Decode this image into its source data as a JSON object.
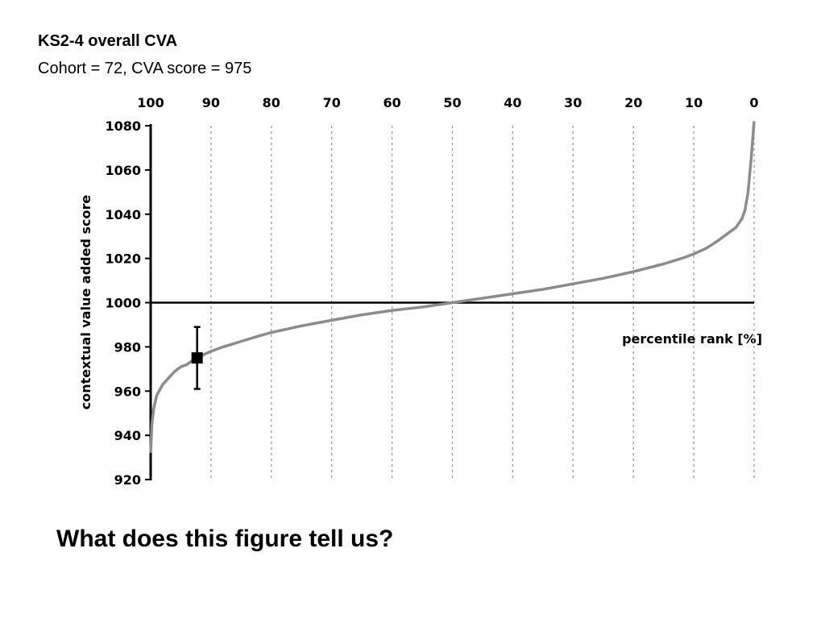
{
  "header": {
    "title": "KS2-4 overall CVA",
    "subtitle": "Cohort = 72, CVA score = 975"
  },
  "footer": {
    "question": "What does this figure tell us?"
  },
  "chart_data": {
    "type": "line",
    "title": "KS2-4 overall CVA",
    "xlabel": "percentile rank [%]",
    "ylabel": "contextual value added score",
    "xlim": [
      100,
      0
    ],
    "ylim": [
      920,
      1080
    ],
    "x_ticks": [
      100,
      90,
      80,
      70,
      60,
      50,
      40,
      30,
      20,
      10,
      0
    ],
    "y_ticks": [
      920,
      940,
      960,
      980,
      1000,
      1020,
      1040,
      1060,
      1080
    ],
    "x_axis_position": "top",
    "vertical_gridlines": "dotted",
    "reference_line": {
      "y": 1000
    },
    "series": [
      {
        "x": [
          100,
          99.8,
          99.5,
          99,
          98,
          97,
          96,
          95,
          94,
          93,
          92,
          90,
          88,
          85,
          82,
          80,
          75,
          70,
          65,
          60,
          55,
          50,
          45,
          40,
          35,
          30,
          25,
          20,
          15,
          12,
          10,
          8,
          6,
          4,
          3,
          2,
          1.5,
          1,
          0.5,
          0.2,
          0
        ],
        "y": [
          932,
          945,
          952,
          958,
          963,
          966,
          969,
          971,
          972,
          974,
          975.5,
          978,
          980,
          982.5,
          985,
          986.5,
          989.5,
          992,
          994.5,
          996.5,
          998,
          1000,
          1002,
          1004,
          1006,
          1008.5,
          1011,
          1014,
          1017.5,
          1020,
          1022,
          1024.5,
          1028,
          1032,
          1034,
          1038,
          1042,
          1050,
          1065,
          1075,
          1082
        ]
      }
    ],
    "marker": {
      "x": 92.3,
      "y": 975,
      "error_low": 961,
      "error_high": 989
    },
    "colors": {
      "curve": "#8c8c8c",
      "axis": "#000000",
      "grid": "#9a9a9a",
      "marker": "#000000"
    }
  }
}
